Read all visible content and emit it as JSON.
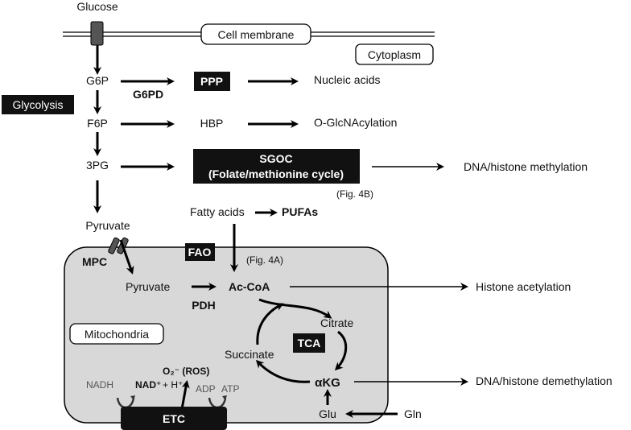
{
  "labels": {
    "glucose": "Glucose",
    "cell_membrane": "Cell membrane",
    "cytoplasm": "Cytoplasm",
    "g6p": "G6P",
    "glycolysis": "Glycolysis",
    "f6p": "F6P",
    "pg3": "3PG",
    "pyruvate_cyto": "Pyruvate",
    "ppp": "PPP",
    "g6pd": "G6PD",
    "nucleic_acids": "Nucleic acids",
    "hbp": "HBP",
    "o_glcnac": "O-GlcNAcylation",
    "sgoc_line1": "SGOC",
    "sgoc_line2": "(Folate/methionine cycle)",
    "fig4b": "(Fig. 4B)",
    "dna_histone_methylation": "DNA/histone methylation",
    "fatty_acids": "Fatty acids",
    "pufas": "PUFAs",
    "fao": "FAO",
    "fig4a": "(Fig. 4A)",
    "mpc": "MPC",
    "pyruvate_mito": "Pyruvate",
    "pdh": "PDH",
    "ac_coa": "Ac-CoA",
    "histone_acetylation": "Histone acetylation",
    "mitochondria": "Mitochondria",
    "citrate": "Citrate",
    "tca": "TCA",
    "succinate": "Succinate",
    "akg": "αKG",
    "dna_histone_demethylation": "DNA/histone demethylation",
    "glu": "Glu",
    "gln": "Gln",
    "nadh": "NADH",
    "nad_plus": "NAD⁺",
    "plus_h": "+ H⁺",
    "o2_ros": "O₂⁻ (ROS)",
    "adp": "ADP",
    "atp": "ATP",
    "etc": "ETC"
  },
  "colors": {
    "mitochondria_fill": "#d8d8d8",
    "dark_box": "#111111",
    "channel": "#555555"
  }
}
